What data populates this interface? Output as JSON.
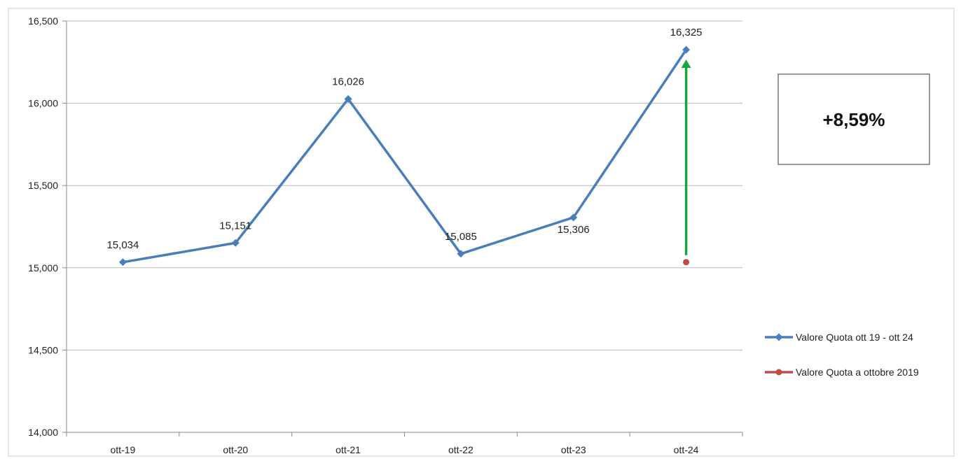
{
  "chart_data": {
    "type": "line",
    "categories": [
      "ott-19",
      "ott-20",
      "ott-21",
      "ott-22",
      "ott-23",
      "ott-24"
    ],
    "series": [
      {
        "name": "Valore Quota ott 19 - ott 24",
        "values": [
          15.034,
          15.151,
          16.026,
          15.085,
          15.306,
          16.325
        ],
        "labels": [
          "15,034",
          "15,151",
          "16,026",
          "15,085",
          "15,306",
          "16,325"
        ],
        "color": "#4a7ebb",
        "marker": "diamond"
      },
      {
        "name": "Valore Quota a ottobre 2019",
        "values": [
          null,
          null,
          null,
          null,
          null,
          15.034
        ],
        "color": "#be4b48",
        "marker": "circle"
      }
    ],
    "ylim": [
      14.0,
      16.5
    ],
    "yticks": [
      14.0,
      14.5,
      15.0,
      15.5,
      16.0,
      16.5
    ],
    "ytick_labels": [
      "14,000",
      "14,500",
      "15,000",
      "15,500",
      "16,000",
      "16,500"
    ],
    "grid": true,
    "legend_position": "right",
    "annotation": {
      "text": "+8,59%",
      "arrow_from": 15.034,
      "arrow_to": 16.325,
      "arrow_category": "ott-24",
      "arrow_color": "#1aa33a"
    }
  }
}
